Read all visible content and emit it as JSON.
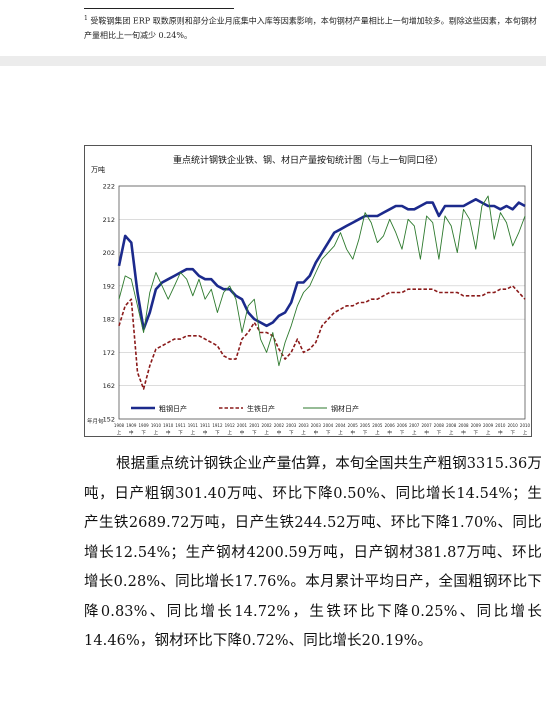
{
  "footnote": {
    "marker": "1",
    "text": "受鞍钢集团 ERP 取数原则和部分企业月底集中入库等因素影响，本旬钢材产量相比上一旬增加较多。剔除这些因素，本旬钢材产量相比上一旬减少 0.24%。"
  },
  "chart_data": {
    "type": "line",
    "title": "重点统计钢铁企业铁、钢、材日产量按旬统计图（与上一旬同口径）",
    "ylabel": "万吨",
    "xlabel": "年月旬",
    "ylim": [
      152,
      222
    ],
    "yticks": [
      152,
      162,
      172,
      182,
      192,
      202,
      212,
      222
    ],
    "grid": true,
    "legend_position": "bottom-left",
    "x": [
      "0808上",
      "0808中",
      "0808下",
      "0809上",
      "0809中",
      "0809下",
      "0810上",
      "0810中",
      "0810下",
      "0811上",
      "0811中",
      "0811下",
      "0812上",
      "0812中",
      "0812下",
      "0901上",
      "0901中",
      "0901下",
      "0902上",
      "0902中",
      "0902下",
      "0903上",
      "0903中",
      "0903下",
      "0904上",
      "0904中",
      "0904下",
      "0905上",
      "0905中",
      "0905下",
      "0906上",
      "0906中",
      "0906下",
      "0907上",
      "0907中",
      "0907下",
      "0908上",
      "0908中",
      "0908下",
      "0909上",
      "0909中",
      "0909下",
      "0910上",
      "0910中",
      "0910下",
      "0911上",
      "0911中",
      "0911下",
      "0912上",
      "0912中",
      "0912下",
      "1001上",
      "1001中",
      "1001下",
      "1002上",
      "1002中",
      "1002下",
      "1003上",
      "1003中",
      "1003下",
      "1004上",
      "1004中",
      "1004下",
      "1005上",
      "1005中",
      "1005下",
      "1006上"
    ],
    "x_tick_labels": [
      "1908",
      "1909",
      "1909",
      "1910",
      "1910",
      "1911",
      "1911",
      "1911",
      "1912",
      "1912",
      "2001",
      "2001",
      "2002",
      "2002",
      "2003",
      "2003",
      "2003",
      "2004",
      "2004",
      "2005",
      "2005",
      "2005",
      "2006",
      "2006",
      "2007",
      "2007",
      "2008",
      "2008",
      "2008",
      "2009",
      "2009",
      "2010",
      "2010",
      "2010"
    ],
    "x_tick_sub_labels": [
      "上",
      "中",
      "下",
      "上",
      "中",
      "下",
      "上",
      "中",
      "下",
      "上",
      "中",
      "下",
      "上",
      "中",
      "下",
      "上",
      "中",
      "下",
      "上",
      "中",
      "下",
      "上",
      "中",
      "下",
      "上",
      "中",
      "下",
      "上",
      "中",
      "下",
      "上",
      "中",
      "下",
      "上"
    ],
    "series": [
      {
        "name": "粗钢日产",
        "color": "#1c2a8c",
        "values": [
          198,
          207,
          205,
          190,
          179,
          184,
          191,
          193,
          194,
          195,
          196,
          197,
          197,
          195,
          194,
          194,
          192,
          191,
          191,
          189,
          188,
          184,
          182,
          181,
          180,
          181,
          183,
          184,
          187,
          193,
          193,
          195,
          199,
          202,
          205,
          208,
          209,
          210,
          211,
          212,
          213,
          213,
          213,
          214,
          215,
          216,
          216,
          215,
          215,
          216,
          217,
          217,
          213,
          216,
          216,
          216,
          216,
          217,
          218,
          217,
          216,
          216,
          215,
          216,
          215,
          217,
          216
        ]
      },
      {
        "name": "生铁日产",
        "color": "#8a1a1a",
        "values": [
          180,
          186,
          188,
          166,
          161,
          168,
          173,
          174,
          175,
          176,
          176,
          177,
          177,
          177,
          176,
          175,
          174,
          171,
          170,
          170,
          176,
          178,
          181,
          178,
          178,
          177,
          173,
          170,
          172,
          176,
          172,
          173,
          175,
          180,
          182,
          184,
          185,
          186,
          186,
          187,
          187,
          188,
          188,
          189,
          190,
          190,
          190,
          191,
          191,
          191,
          191,
          191,
          190,
          190,
          190,
          190,
          189,
          189,
          189,
          189,
          190,
          190,
          191,
          191,
          192,
          190,
          188
        ]
      },
      {
        "name": "钢材日产",
        "color": "#2e7a2e",
        "values": [
          188,
          195,
          194,
          186,
          178,
          190,
          196,
          192,
          188,
          192,
          196,
          194,
          189,
          194,
          188,
          191,
          184,
          190,
          192,
          188,
          178,
          186,
          188,
          176,
          172,
          178,
          168,
          175,
          180,
          186,
          190,
          192,
          196,
          200,
          202,
          204,
          208,
          203,
          200,
          206,
          214,
          211,
          205,
          207,
          212,
          208,
          203,
          212,
          210,
          200,
          213,
          211,
          200,
          213,
          210,
          202,
          215,
          212,
          203,
          216,
          219,
          206,
          214,
          211,
          204,
          208,
          213
        ]
      }
    ]
  },
  "body": {
    "paragraph": "根据重点统计钢铁企业产量估算，本旬全国共生产粗钢3315.36万吨，日产粗钢301.40万吨、环比下降0.50%、同比增长14.54%；生产生铁2689.72万吨，日产生铁244.52万吨、环比下降1.70%、同比增长12.54%；生产钢材4200.59万吨，日产钢材381.87万吨、环比增长0.28%、同比增长17.76%。本月累计平均日产，全国粗钢环比下降0.83%、同比增长14.72%，生铁环比下降0.25%、同比增长14.46%，钢材环比下降0.72%、同比增长20.19%。"
  }
}
